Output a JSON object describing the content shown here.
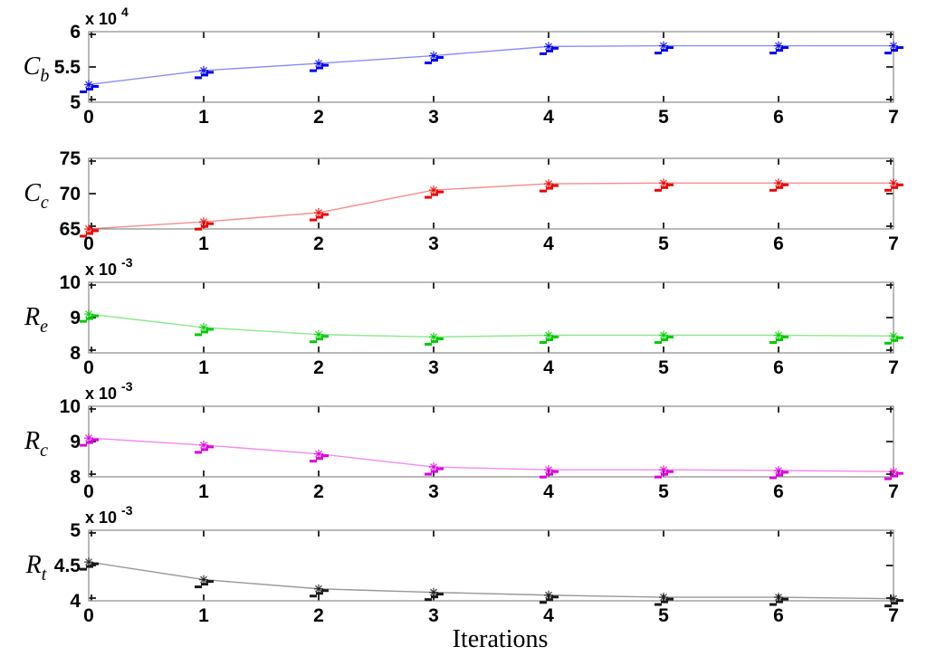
{
  "figure": {
    "background": "#ffffff",
    "box_color": "#8a8a8a",
    "tick_color": "#1a1a1a"
  },
  "chart_data": {
    "type": "line",
    "xlabel": "Iterations",
    "x": [
      0,
      1,
      2,
      3,
      4,
      5,
      6,
      7
    ],
    "xticks": [
      0,
      1,
      2,
      3,
      4,
      5,
      6,
      7
    ],
    "xtick_labels": [
      "0",
      "1",
      "2",
      "3",
      "4",
      "5",
      "6",
      "7"
    ],
    "marker": "asterisk-with-dash-cluster",
    "grid": false,
    "legend": "none",
    "subplots": [
      {
        "id": "cb",
        "ylabel": "C",
        "ylabel_sub": "b",
        "scale_label": "x 10",
        "scale_exponent": "4",
        "color": "#0000ee",
        "ylim": [
          5,
          6
        ],
        "yticks": [
          5,
          5.5,
          6
        ],
        "ytick_labels": [
          "5",
          "5.5",
          "6"
        ],
        "values": [
          5.25,
          5.45,
          5.55,
          5.66,
          5.79,
          5.8,
          5.8,
          5.8
        ]
      },
      {
        "id": "cc",
        "ylabel": "C",
        "ylabel_sub": "c",
        "scale_label": "",
        "scale_exponent": null,
        "color": "#ee0000",
        "ylim": [
          65,
          75
        ],
        "yticks": [
          65,
          70,
          75
        ],
        "ytick_labels": [
          "65",
          "70",
          "75"
        ],
        "values": [
          65.0,
          66.0,
          67.3,
          70.5,
          71.4,
          71.5,
          71.5,
          71.5
        ]
      },
      {
        "id": "re",
        "ylabel": "R",
        "ylabel_sub": "e",
        "scale_label": "x 10",
        "scale_exponent": "-3",
        "color": "#00cc00",
        "ylim": [
          8,
          10
        ],
        "yticks": [
          8,
          9,
          10
        ],
        "ytick_labels": [
          "8",
          "9",
          "10"
        ],
        "values": [
          9.1,
          8.72,
          8.52,
          8.45,
          8.5,
          8.5,
          8.5,
          8.48
        ]
      },
      {
        "id": "rc",
        "ylabel": "R",
        "ylabel_sub": "c",
        "scale_label": "x 10",
        "scale_exponent": "-3",
        "color": "#dd00dd",
        "ylim": [
          8,
          10
        ],
        "yticks": [
          8,
          9,
          10
        ],
        "ytick_labels": [
          "8",
          "9",
          "10"
        ],
        "values": [
          9.1,
          8.9,
          8.65,
          8.28,
          8.2,
          8.2,
          8.18,
          8.15
        ]
      },
      {
        "id": "rt",
        "ylabel": "R",
        "ylabel_sub": "t",
        "scale_label": "x 10",
        "scale_exponent": "-3",
        "color": "#1a1a1a",
        "ylim": [
          4,
          5
        ],
        "yticks": [
          4,
          4.5,
          5
        ],
        "ytick_labels": [
          "4",
          "4.5",
          "5"
        ],
        "values": [
          4.55,
          4.3,
          4.17,
          4.12,
          4.08,
          4.05,
          4.05,
          4.03
        ]
      }
    ]
  }
}
